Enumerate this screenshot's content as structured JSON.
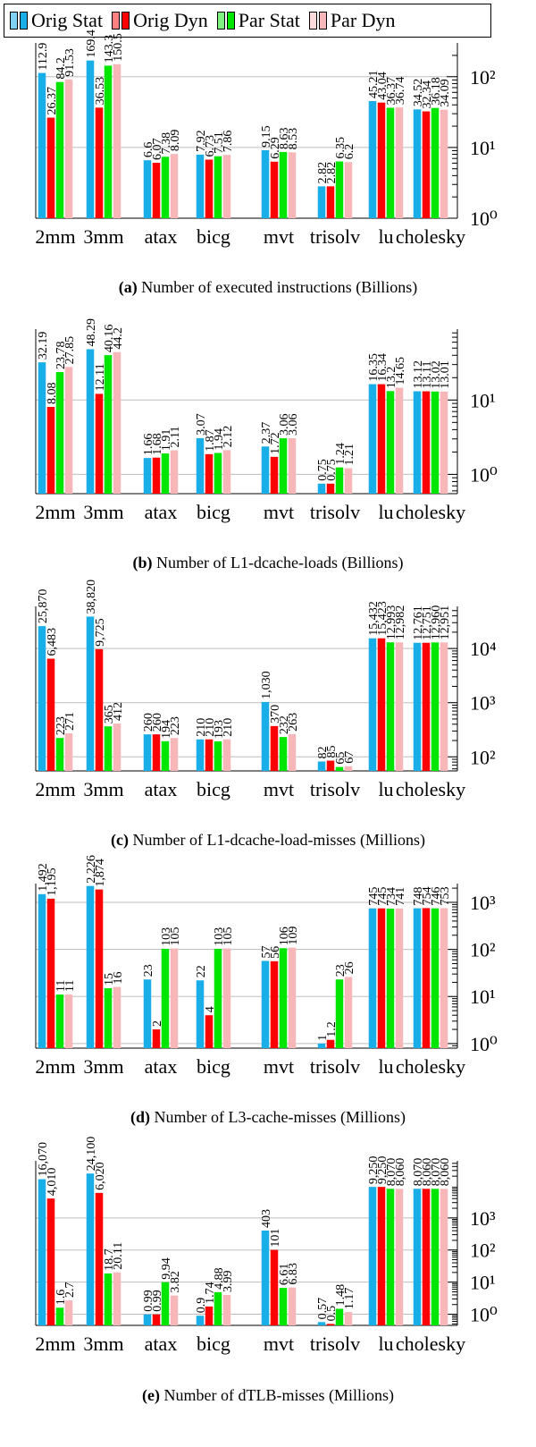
{
  "legend": {
    "items": [
      {
        "label": "Orig Stat",
        "color": "#1aaee8",
        "light": "#7fd0f2"
      },
      {
        "label": "Orig Dyn",
        "color": "#ff0000",
        "light": "#ff8080"
      },
      {
        "label": "Par Stat",
        "color": "#00e600",
        "light": "#7ff27f"
      },
      {
        "label": "Par Dyn",
        "color": "#f7b6b8",
        "light": "#fcd9da"
      }
    ]
  },
  "chart_data": [
    {
      "type": "bar",
      "scale": "log",
      "categories": [
        "2mm",
        "3mm",
        "atax",
        "bicg",
        "mvt",
        "trisolv",
        "lu",
        "cholesky"
      ],
      "ylim": [
        1,
        300
      ],
      "yticks": [
        {
          "value": 1,
          "label": "10⁰"
        },
        {
          "value": 10,
          "label": "10¹"
        },
        {
          "value": 100,
          "label": "10²"
        }
      ],
      "series": [
        {
          "name": "Orig Stat",
          "values": [
            112.9,
            169.4,
            6.6,
            7.92,
            9.15,
            2.82,
            45.21,
            34.52
          ],
          "labels": [
            "112.9",
            "169.4",
            "6.6",
            "7.92",
            "9.15",
            "2.82",
            "45.21",
            "34.52"
          ]
        },
        {
          "name": "Orig Dyn",
          "values": [
            26.37,
            36.53,
            6.07,
            6.73,
            6.29,
            2.82,
            43.04,
            32.34
          ],
          "labels": [
            "26.37",
            "36.53",
            "6.07",
            "6.73",
            "6.29",
            "2.82",
            "43.04",
            "32.34"
          ]
        },
        {
          "name": "Par Stat",
          "values": [
            84.2,
            143.3,
            7.38,
            7.51,
            8.63,
            6.35,
            36.37,
            36.18
          ],
          "labels": [
            "84.2",
            "143.3",
            "7.38",
            "7.51",
            "8.63",
            "6.35",
            "36.37",
            "36.18"
          ]
        },
        {
          "name": "Par Dyn",
          "values": [
            91.53,
            150.5,
            8.09,
            7.86,
            8.53,
            6.2,
            36.74,
            34.09
          ],
          "labels": [
            "91.53",
            "150.5",
            "8.09",
            "7.86",
            "8.53",
            "6.2",
            "36.74",
            "34.09"
          ]
        }
      ],
      "caption_tag": "(a)",
      "caption_text": " Number of executed instructions (Billions)"
    },
    {
      "type": "bar",
      "scale": "log",
      "categories": [
        "2mm",
        "3mm",
        "atax",
        "bicg",
        "mvt",
        "trisolv",
        "lu",
        "cholesky"
      ],
      "ylim": [
        0.55,
        90
      ],
      "yticks": [
        {
          "value": 1,
          "label": "10⁰"
        },
        {
          "value": 10,
          "label": "10¹"
        }
      ],
      "series": [
        {
          "name": "Orig Stat",
          "values": [
            32.19,
            48.29,
            1.66,
            3.07,
            2.37,
            0.75,
            16.35,
            13.12
          ],
          "labels": [
            "32.19",
            "48.29",
            "1.66",
            "3.07",
            "2.37",
            "0.75",
            "16.35",
            "13.12"
          ]
        },
        {
          "name": "Orig Dyn",
          "values": [
            8.08,
            12.11,
            1.68,
            1.87,
            1.72,
            0.75,
            16.34,
            13.11
          ],
          "labels": [
            "8.08",
            "12.11",
            "1.68",
            "1.87",
            "1.72",
            "0.75",
            "16.34",
            "13.11"
          ]
        },
        {
          "name": "Par Stat",
          "values": [
            23.78,
            40.16,
            1.91,
            1.94,
            3.06,
            1.24,
            13.2,
            13.02
          ],
          "labels": [
            "23.78",
            "40.16",
            "1.91",
            "1.94",
            "3.06",
            "1.24",
            "13.2",
            "13.02"
          ]
        },
        {
          "name": "Par Dyn",
          "values": [
            27.85,
            44.2,
            2.11,
            2.12,
            3.06,
            1.21,
            14.65,
            13.01
          ],
          "labels": [
            "27.85",
            "44.2",
            "2.11",
            "2.12",
            "3.06",
            "1.21",
            "14.65",
            "13.01"
          ]
        }
      ],
      "caption_tag": "(b)",
      "caption_text": " Number of L1-dcache-loads (Billions)"
    },
    {
      "type": "bar",
      "scale": "log",
      "categories": [
        "2mm",
        "3mm",
        "atax",
        "bicg",
        "mvt",
        "trisolv",
        "lu",
        "cholesky"
      ],
      "ylim": [
        55,
        60000
      ],
      "yticks": [
        {
          "value": 100,
          "label": "10²"
        },
        {
          "value": 1000,
          "label": "10³"
        },
        {
          "value": 10000,
          "label": "10⁴"
        }
      ],
      "series": [
        {
          "name": "Orig Stat",
          "values": [
            25870,
            38820,
            260,
            210,
            1030,
            82,
            15432,
            12761
          ],
          "labels": [
            "25,870",
            "38,820",
            "260",
            "210",
            "1,030",
            "82",
            "15,432",
            "12,761"
          ]
        },
        {
          "name": "Orig Dyn",
          "values": [
            6483,
            9725,
            260,
            210,
            370,
            85,
            15423,
            12751
          ],
          "labels": [
            "6,483",
            "9,725",
            "260",
            "210",
            "370",
            "85",
            "15,423",
            "12,751"
          ]
        },
        {
          "name": "Par Stat",
          "values": [
            223,
            365,
            194,
            193,
            232,
            65,
            12993,
            12960
          ],
          "labels": [
            "223",
            "365",
            "194",
            "193",
            "232",
            "65",
            "12,993",
            "12,960"
          ]
        },
        {
          "name": "Par Dyn",
          "values": [
            271,
            412,
            223,
            210,
            263,
            67,
            12982,
            12951
          ],
          "labels": [
            "271",
            "412",
            "223",
            "210",
            "263",
            "67",
            "12,982",
            "12,951"
          ]
        }
      ],
      "caption_tag": "(c)",
      "caption_text": " Number of L1-dcache-load-misses (Millions)"
    },
    {
      "type": "bar",
      "scale": "log",
      "categories": [
        "2mm",
        "3mm",
        "atax",
        "bicg",
        "mvt",
        "trisolv",
        "lu",
        "cholesky"
      ],
      "ylim": [
        0.8,
        2500
      ],
      "yticks": [
        {
          "value": 1,
          "label": "10⁰"
        },
        {
          "value": 10,
          "label": "10¹"
        },
        {
          "value": 100,
          "label": "10²"
        },
        {
          "value": 1000,
          "label": "10³"
        }
      ],
      "series": [
        {
          "name": "Orig Stat",
          "values": [
            1492,
            2226,
            23,
            22,
            57,
            1,
            745,
            748
          ],
          "labels": [
            "1,492",
            "2,226",
            "23",
            "22",
            "57",
            "1",
            "745",
            "748"
          ]
        },
        {
          "name": "Orig Dyn",
          "values": [
            1195,
            1874,
            2,
            4,
            56,
            1.2,
            745,
            754
          ],
          "labels": [
            "1,195",
            "1,874",
            "2",
            "4",
            "56",
            "1.2",
            "745",
            "754"
          ]
        },
        {
          "name": "Par Stat",
          "values": [
            11,
            15,
            103,
            103,
            106,
            23,
            734,
            746
          ],
          "labels": [
            "11",
            "15",
            "103",
            "103",
            "106",
            "23",
            "734",
            "746"
          ]
        },
        {
          "name": "Par Dyn",
          "values": [
            11,
            16,
            105,
            105,
            109,
            26,
            741,
            753
          ],
          "labels": [
            "11",
            "16",
            "105",
            "105",
            "109",
            "26",
            "741",
            "753"
          ]
        }
      ],
      "caption_tag": "(d)",
      "caption_text": " Number of L3-cache-misses (Millions)"
    },
    {
      "type": "bar",
      "scale": "log",
      "categories": [
        "2mm",
        "3mm",
        "atax",
        "bicg",
        "mvt",
        "trisolv",
        "lu",
        "cholesky"
      ],
      "ylim": [
        0.45,
        60000
      ],
      "yticks": [
        {
          "value": 1,
          "label": "10⁰"
        },
        {
          "value": 10,
          "label": "10¹"
        },
        {
          "value": 100,
          "label": "10²"
        },
        {
          "value": 1000,
          "label": "10³"
        }
      ],
      "series": [
        {
          "name": "Orig Stat",
          "values": [
            16070,
            24100,
            0.99,
            0.9,
            403,
            0.57,
            9250,
            8070
          ],
          "labels": [
            "16,070",
            "24,100",
            "0.99",
            "0.9",
            "403",
            "0.57",
            "9,250",
            "8,070"
          ]
        },
        {
          "name": "Orig Dyn",
          "values": [
            4010,
            6020,
            0.99,
            1.74,
            101,
            0.5,
            9250,
            8060
          ],
          "labels": [
            "4,010",
            "6,020",
            "0.99",
            "1.74",
            "101",
            "0.5",
            "9,250",
            "8,060"
          ]
        },
        {
          "name": "Par Stat",
          "values": [
            1.6,
            18.7,
            9.94,
            4.88,
            6.61,
            1.48,
            8070,
            8070
          ],
          "labels": [
            "1.6",
            "18.7",
            "9.94",
            "4.88",
            "6.61",
            "1.48",
            "8,070",
            "8,070"
          ]
        },
        {
          "name": "Par Dyn",
          "values": [
            2.7,
            20.11,
            3.82,
            3.99,
            6.83,
            1.17,
            8060,
            8060
          ],
          "labels": [
            "2.7",
            "20.11",
            "3.82",
            "3.99",
            "6.83",
            "1.17",
            "8,060",
            "8,060"
          ]
        }
      ],
      "caption_tag": "(e)",
      "caption_text": " Number of dTLB-misses (Millions)"
    }
  ]
}
